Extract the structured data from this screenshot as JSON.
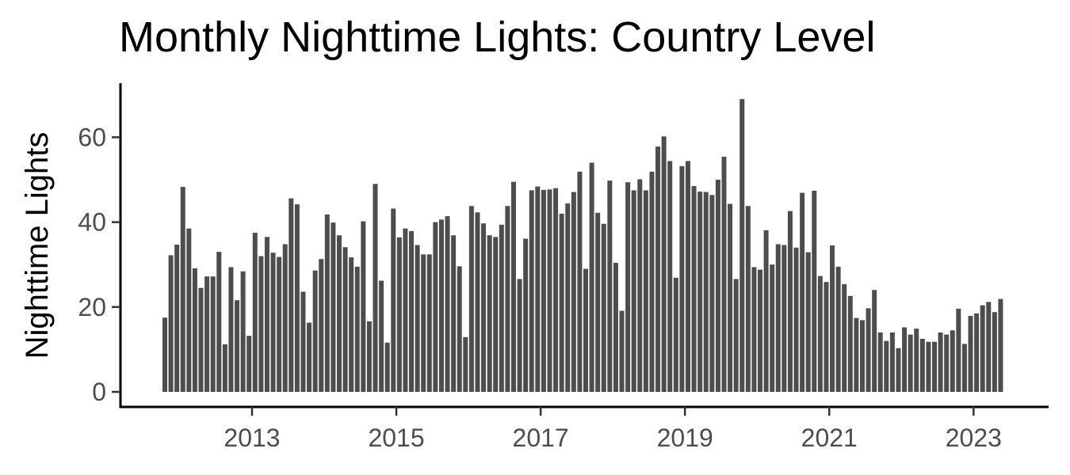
{
  "chart_data": {
    "type": "bar",
    "title": "Monthly Nighttime Lights: Country Level",
    "xlabel": "",
    "ylabel": "Nighttime Lights",
    "x_start": "2011-10",
    "x_ticks": [
      "2013",
      "2015",
      "2017",
      "2019",
      "2021",
      "2023"
    ],
    "y_ticks": [
      0,
      20,
      40,
      60
    ],
    "xlim": [
      "2011-07",
      "2023-12"
    ],
    "ylim": [
      0,
      72
    ],
    "grid": false,
    "legend": "none",
    "bar_color": "#4d4d4d",
    "values": [
      17.5,
      32.2,
      34.7,
      48.3,
      38.5,
      29.1,
      24.5,
      27.2,
      27.2,
      33.0,
      11.2,
      29.4,
      21.6,
      28.4,
      13.2,
      37.5,
      32.0,
      36.5,
      32.8,
      31.8,
      34.8,
      45.6,
      44.2,
      23.6,
      16.3,
      28.6,
      31.3,
      41.8,
      39.9,
      36.9,
      34.1,
      31.7,
      29.5,
      40.2,
      16.6,
      49.0,
      26.2,
      11.6,
      43.2,
      36.4,
      38.5,
      37.9,
      34.6,
      32.4,
      32.4,
      40.0,
      40.6,
      41.4,
      36.9,
      29.6,
      12.9,
      43.8,
      42.3,
      39.7,
      36.9,
      36.5,
      39.4,
      43.8,
      49.5,
      26.6,
      36.1,
      47.5,
      48.4,
      47.6,
      47.7,
      48.0,
      42.0,
      44.4,
      47.1,
      51.9,
      29.0,
      54.0,
      42.2,
      39.6,
      49.8,
      30.4,
      19.1,
      49.4,
      47.5,
      50.1,
      47.5,
      51.9,
      57.8,
      60.2,
      54.4,
      26.9,
      53.2,
      54.4,
      48.5,
      47.2,
      47.1,
      46.4,
      50.0,
      55.4,
      44.3,
      26.6,
      69.0,
      43.8,
      29.4,
      28.8,
      38.1,
      30.0,
      34.8,
      34.6,
      42.6,
      34.0,
      46.9,
      32.9,
      47.4,
      27.3,
      25.9,
      34.5,
      29.5,
      25.4,
      22.6,
      17.4,
      16.9,
      19.7,
      24.0,
      14.0,
      12.0,
      14.0,
      10.3,
      15.2,
      13.5,
      14.9,
      12.5,
      11.8,
      11.8,
      14.0,
      13.5,
      14.5,
      19.6,
      11.3,
      17.9,
      18.5,
      20.4,
      21.2,
      18.8,
      21.9
    ]
  }
}
